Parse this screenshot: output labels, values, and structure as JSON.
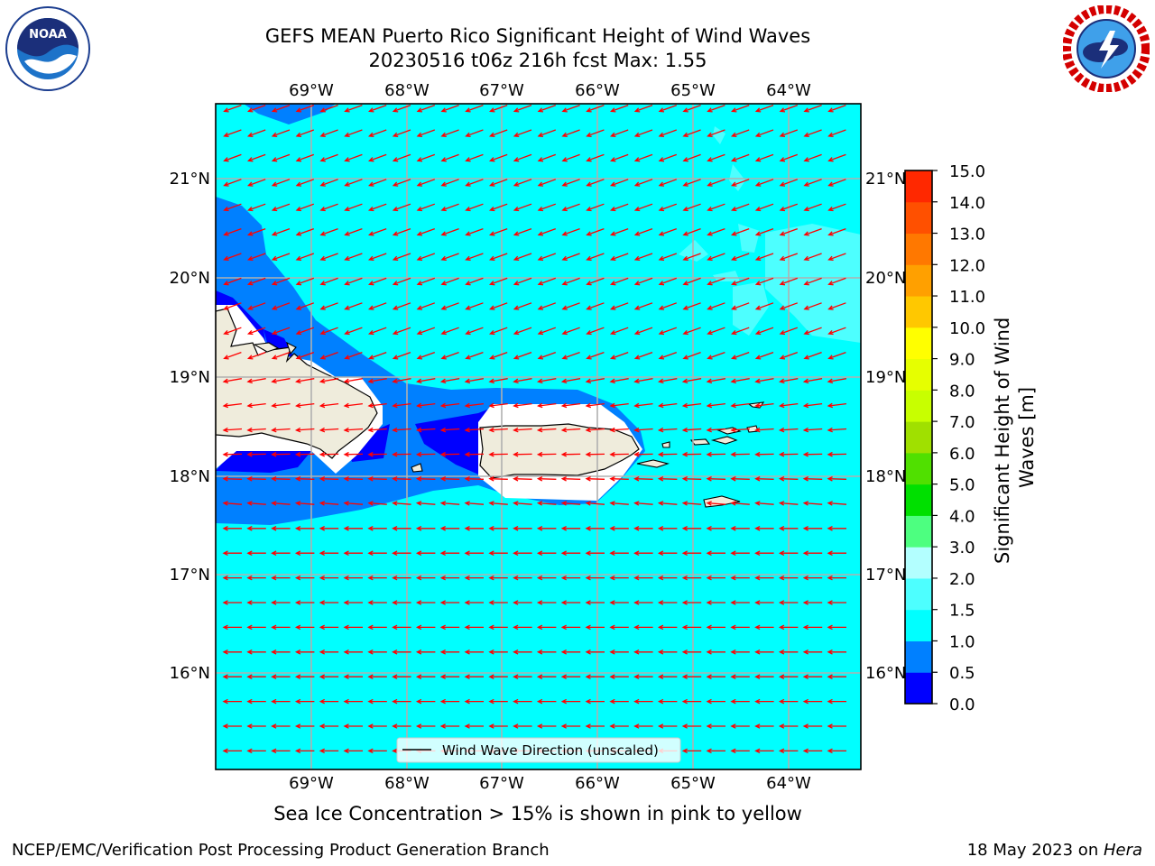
{
  "header": {
    "title_line1": "GEFS MEAN Puerto Rico Significant Height of Wind Waves",
    "title_line2": "20230516 t06z 216h fcst   Max: 1.55"
  },
  "logos": {
    "left": "noaa-logo",
    "right": "national-weather-service-logo"
  },
  "map": {
    "lon_labels": [
      "69°W",
      "68°W",
      "67°W",
      "66°W",
      "65°W",
      "64°W"
    ],
    "lat_labels": [
      "21°N",
      "20°N",
      "19°N",
      "18°N",
      "17°N",
      "16°N"
    ],
    "legend": "Wind Wave Direction (unscaled)",
    "ocean_color": "#00ffff",
    "land_color": "#efecdc",
    "arrow_color": "#ff0000"
  },
  "colorbar": {
    "label": "Significant Height of Wind Waves [m]",
    "ticks": [
      "0.0",
      "0.5",
      "1.0",
      "1.5",
      "2.0",
      "3.0",
      "4.0",
      "5.0",
      "6.0",
      "7.0",
      "8.0",
      "9.0",
      "10.0",
      "11.0",
      "12.0",
      "13.0",
      "14.0",
      "15.0"
    ],
    "colors": [
      "#0000ff",
      "#0080ff",
      "#00ffff",
      "#4dffff",
      "#b3ffff",
      "#4dff80",
      "#00e000",
      "#50e000",
      "#a0e000",
      "#c8ff00",
      "#e6ff00",
      "#ffff00",
      "#ffc800",
      "#ffa000",
      "#ff7800",
      "#ff5000",
      "#ff2800",
      "#ff0000"
    ]
  },
  "subtitle": "Sea Ice Concentration > 15% is shown in pink to yellow",
  "footer": {
    "left": "NCEP/EMC/Verification Post Processing Product Generation Branch",
    "right_prefix": "18 May 2023 on ",
    "right_host": "Hera"
  }
}
